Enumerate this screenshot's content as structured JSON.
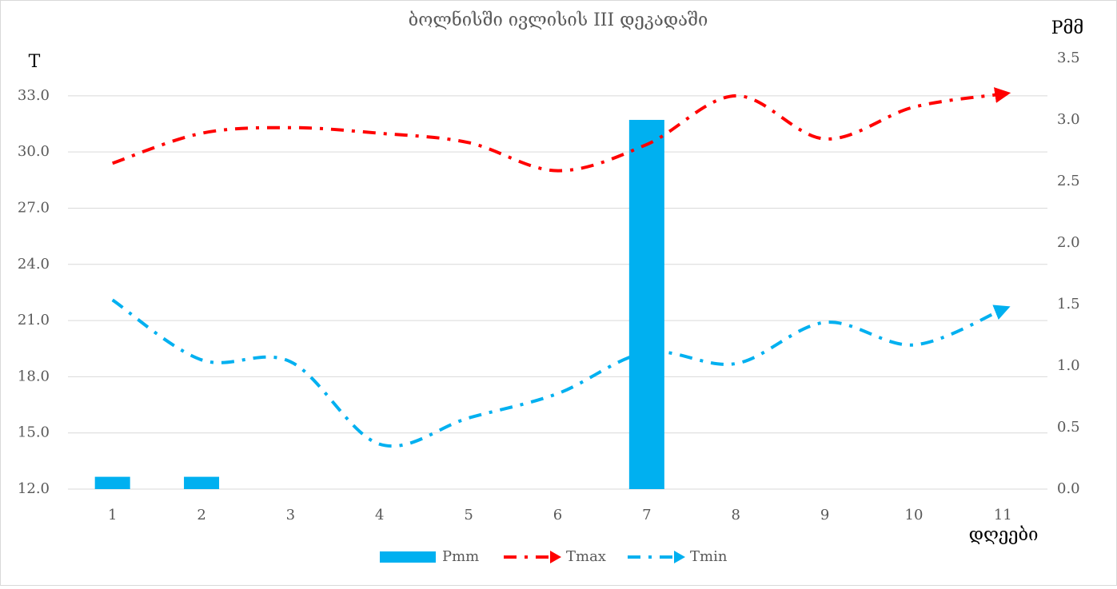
{
  "chart_data": {
    "type": "bar_line",
    "title": "ბოლნისში ივლისის III დეკადაში",
    "y_label": "T",
    "y2_label": "Pმმ",
    "x_label": "დღეები",
    "categories": [
      1,
      2,
      3,
      4,
      5,
      6,
      7,
      8,
      9,
      10,
      11
    ],
    "series": [
      {
        "name": "Pmm",
        "type": "bar",
        "axis": "y2",
        "color": "#00b0f0",
        "values": [
          0.1,
          0.1,
          0,
          0,
          0,
          0,
          3.0,
          0,
          0,
          0,
          0
        ]
      },
      {
        "name": "Tmax",
        "type": "line",
        "axis": "y",
        "color": "#ff0000",
        "values": [
          29.4,
          31.0,
          31.3,
          31.0,
          30.5,
          29.0,
          30.4,
          33.0,
          30.7,
          32.4,
          33.1
        ]
      },
      {
        "name": "Tmin",
        "type": "line",
        "axis": "y",
        "color": "#00b0f0",
        "values": [
          22.1,
          18.9,
          18.8,
          14.4,
          15.8,
          17.1,
          19.3,
          18.7,
          20.9,
          19.7,
          21.6
        ]
      }
    ],
    "ylim": [
      12,
      35
    ],
    "yticks": [
      {
        "value": 12,
        "label": "12.0"
      },
      {
        "value": 15,
        "label": "15.0"
      },
      {
        "value": 18,
        "label": "18.0"
      },
      {
        "value": 21,
        "label": "21.0"
      },
      {
        "value": 24,
        "label": "24.0"
      },
      {
        "value": 27,
        "label": "27.0"
      },
      {
        "value": 30,
        "label": "30.0"
      },
      {
        "value": 33,
        "label": "33.0"
      }
    ],
    "y2lim": [
      0,
      3.5
    ],
    "y2ticks": [
      {
        "value": 0,
        "label": "0.0"
      },
      0.5,
      {
        "value": 1,
        "label": "1.0"
      },
      1.5,
      {
        "value": 2,
        "label": "2.0"
      },
      2.5,
      {
        "value": 3,
        "label": "3.0"
      },
      3.5
    ],
    "grid": true,
    "legend": "bottom"
  }
}
